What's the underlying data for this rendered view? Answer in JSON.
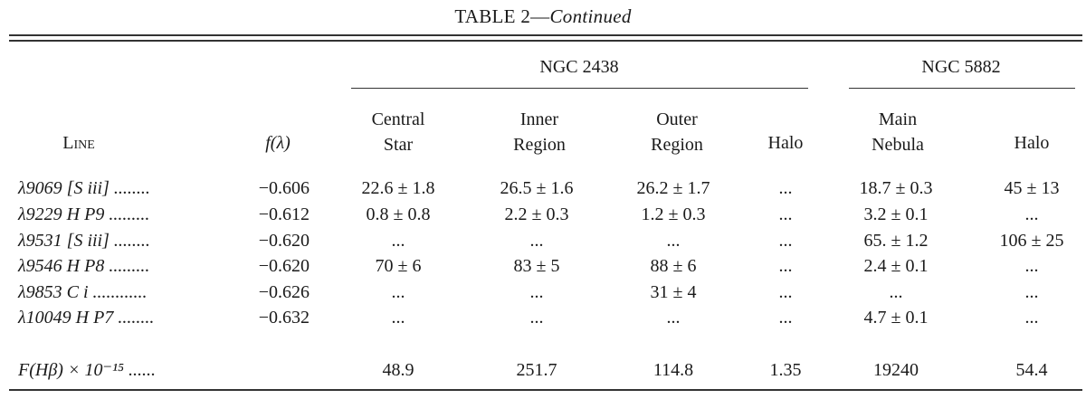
{
  "caption": {
    "label": "TABLE 2",
    "separator": "—",
    "continued": "Continued"
  },
  "groups": {
    "ngc2438": "NGC 2438",
    "ngc5882": "NGC 5882"
  },
  "columns": {
    "line": "Line",
    "f_lambda": "f(λ)",
    "ngc2438_central_star": [
      "Central",
      "Star"
    ],
    "ngc2438_inner_region": [
      "Inner",
      "Region"
    ],
    "ngc2438_outer_region": [
      "Outer",
      "Region"
    ],
    "ngc2438_halo": "Halo",
    "ngc5882_main_nebula": [
      "Main",
      "Nebula"
    ],
    "ngc5882_halo": "Halo"
  },
  "rows": [
    {
      "line": "λ9069 [S iii] ........",
      "f": "−0.606",
      "central_star": "22.6 ± 1.8",
      "inner_region": "26.5 ± 1.6",
      "outer_region": "26.2 ± 1.7",
      "halo_2438": "...",
      "main_nebula": "18.7 ± 0.3",
      "halo_5882": "45 ± 13"
    },
    {
      "line": "λ9229 H P9 .........",
      "f": "−0.612",
      "central_star": "0.8 ± 0.8",
      "inner_region": "2.2 ± 0.3",
      "outer_region": "1.2 ± 0.3",
      "halo_2438": "...",
      "main_nebula": "3.2 ± 0.1",
      "halo_5882": "..."
    },
    {
      "line": "λ9531 [S iii] ........",
      "f": "−0.620",
      "central_star": "...",
      "inner_region": "...",
      "outer_region": "...",
      "halo_2438": "...",
      "main_nebula": "65. ± 1.2",
      "halo_5882": "106 ± 25"
    },
    {
      "line": "λ9546 H P8 .........",
      "f": "−0.620",
      "central_star": "70 ± 6",
      "inner_region": "83 ± 5",
      "outer_region": "88 ± 6",
      "halo_2438": "...",
      "main_nebula": "2.4 ± 0.1",
      "halo_5882": "..."
    },
    {
      "line": "λ9853 C i ............",
      "f": "−0.626",
      "central_star": "...",
      "inner_region": "...",
      "outer_region": "31 ± 4",
      "halo_2438": "...",
      "main_nebula": "...",
      "halo_5882": "..."
    },
    {
      "line": "λ10049 H P7 ........",
      "f": "−0.632",
      "central_star": "...",
      "inner_region": "...",
      "outer_region": "...",
      "halo_2438": "...",
      "main_nebula": "4.7 ± 0.1",
      "halo_5882": "..."
    }
  ],
  "flux_row": {
    "label": "F(Hβ) × 10⁻¹⁵ ......",
    "central_star": "48.9",
    "inner_region": "251.7",
    "outer_region": "114.8",
    "halo_2438": "1.35",
    "main_nebula": "19240",
    "halo_5882": "54.4"
  }
}
